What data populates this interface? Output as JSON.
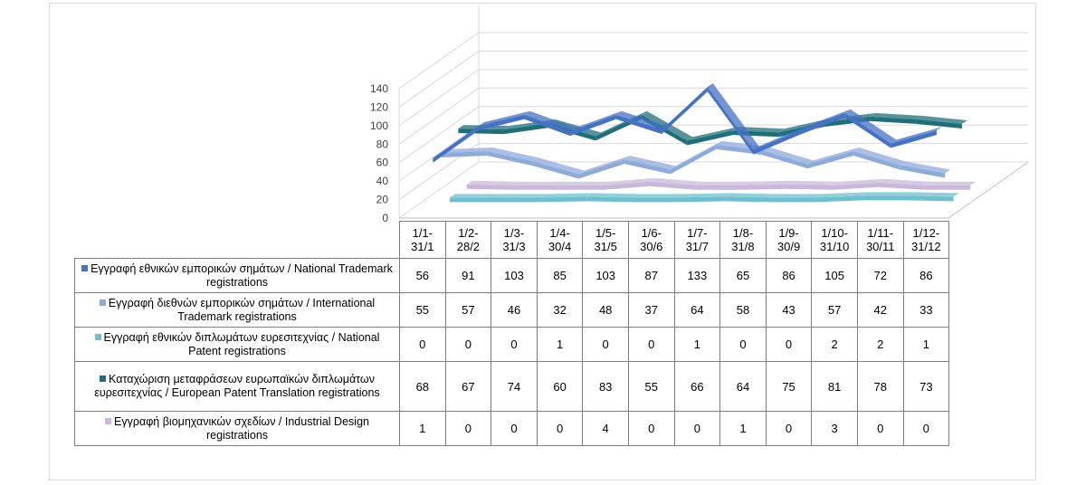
{
  "chart_data": {
    "type": "line",
    "style": "3d-line-with-data-table",
    "categories": [
      "1/1-\n31/1",
      "1/2-\n28/2",
      "1/3-\n31/3",
      "1/4-\n30/4",
      "1/5-\n31/5",
      "1/6-\n30/6",
      "1/7-\n31/7",
      "1/8-\n31/8",
      "1/9-\n30/9",
      "1/10-\n31/10",
      "1/11-\n30/11",
      "1/12-\n31/12"
    ],
    "ylim": [
      0,
      140
    ],
    "yticks": [
      0,
      20,
      40,
      60,
      80,
      100,
      120,
      140
    ],
    "grid": true,
    "legend": "table",
    "series": [
      {
        "name": "Εγγραφή εθνικών εμπορικών σημάτων / National Trademark registrations",
        "color": "#4472c4",
        "values": [
          56,
          91,
          103,
          85,
          103,
          87,
          133,
          65,
          86,
          105,
          72,
          86
        ]
      },
      {
        "name": "Εγγραφή διεθνών εμπορικών σημάτων / International Trademark registrations",
        "color": "#8eaadb",
        "values": [
          55,
          57,
          46,
          32,
          48,
          37,
          64,
          58,
          43,
          57,
          42,
          33
        ]
      },
      {
        "name": "Εγγραφή εθνικών διπλωμάτων ευρεσιτεχνίας / National Patent registrations",
        "color": "#6cc0cf",
        "values": [
          0,
          0,
          0,
          1,
          0,
          0,
          1,
          0,
          0,
          2,
          2,
          1
        ]
      },
      {
        "name": "Καταχώριση μεταφράσεων ευρωπαϊκών διπλωμάτων ευρεσιτεχνίας / European Patent Translation registrations",
        "color": "#1f6f7a",
        "values": [
          68,
          67,
          74,
          60,
          83,
          55,
          66,
          64,
          75,
          81,
          78,
          73
        ]
      },
      {
        "name": "Εγγραφή βιομηχανικών σχεδίων / Industrial Design registrations",
        "color": "#c9b8d9",
        "values": [
          1,
          0,
          0,
          0,
          4,
          0,
          0,
          1,
          0,
          3,
          0,
          0
        ]
      }
    ]
  }
}
